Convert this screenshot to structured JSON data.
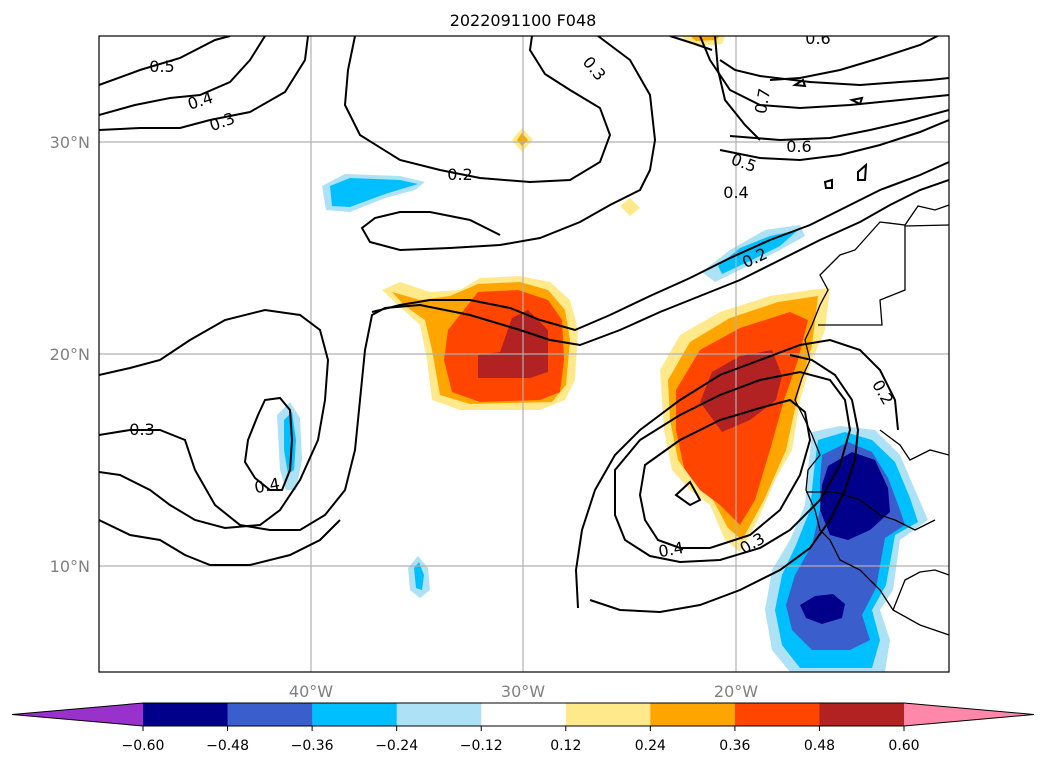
{
  "title": "2022091100 F048",
  "axes": {
    "lat_ticks": [
      "30°N",
      "20°N",
      "10°N"
    ],
    "lon_ticks": [
      "40°W",
      "30°W",
      "20°W"
    ]
  },
  "contour_labels": [
    "0.5",
    "0.4",
    "0.3",
    "0.2",
    "0.3",
    "0.6",
    "0.7",
    "0.6",
    "0.5",
    "0.4",
    "0.2",
    "0.2",
    "0.3",
    "0.4",
    "0.4",
    "0.3"
  ],
  "colorbar": {
    "ticks": [
      "−0.60",
      "−0.48",
      "−0.36",
      "−0.24",
      "−0.12",
      "0.12",
      "0.24",
      "0.36",
      "0.48",
      "0.60"
    ],
    "colors": {
      "below": "#9932CC",
      "levels": [
        "#00008B",
        "#3A5FCD",
        "#00BFFF",
        "#ADE1F5",
        "#FFFFFF",
        "#FFE98A",
        "#FFA500",
        "#FF4500",
        "#B22222"
      ],
      "above": "#FF88AA"
    }
  }
}
